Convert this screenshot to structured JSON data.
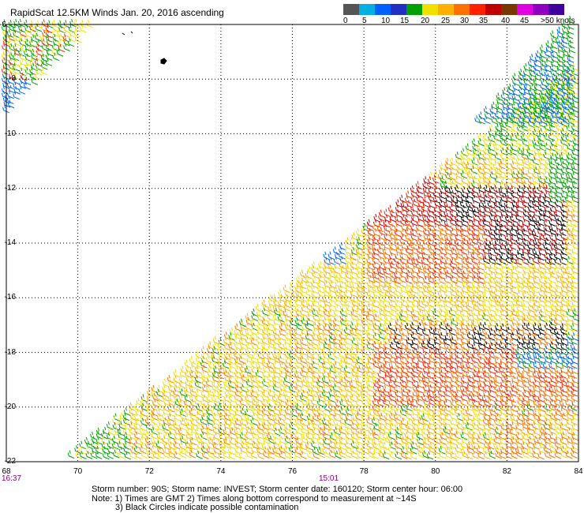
{
  "title": "RapidScat 12.5KM Winds Jan. 20, 2016 ascending",
  "colorbar": {
    "colors": [
      "#555555",
      "#00b0e0",
      "#0060ff",
      "#2030c0",
      "#00a000",
      "#f0e000",
      "#ffb000",
      "#ff7000",
      "#ff2000",
      "#c00000",
      "#7a3800",
      "#e000e0",
      "#9000c0",
      "#4000a0"
    ],
    "labels": [
      "0",
      "5",
      "10",
      "15",
      "20",
      "25",
      "30",
      "35",
      "40",
      "45",
      ">50 knots"
    ]
  },
  "axes": {
    "x_ticks": [
      "68",
      "70",
      "72",
      "74",
      "76",
      "78",
      "80",
      "82",
      "84"
    ],
    "y_ticks": [
      "-8",
      "-10",
      "-12",
      "-14",
      "-16",
      "-18",
      "-20",
      "-22"
    ],
    "top_left_label": "-6"
  },
  "times": {
    "left": "16:37",
    "middle": "15:01"
  },
  "storm_info": {
    "line1": "Storm number: 90S;  Storm name: INVEST;  Storm center date: 160120;  Storm center hour: 06:00",
    "line2": "Note: 1) Times are GMT  2) Times along bottom correspond to measurement at ~14S",
    "line3": "3) Black Circles indicate possible contamination"
  }
}
